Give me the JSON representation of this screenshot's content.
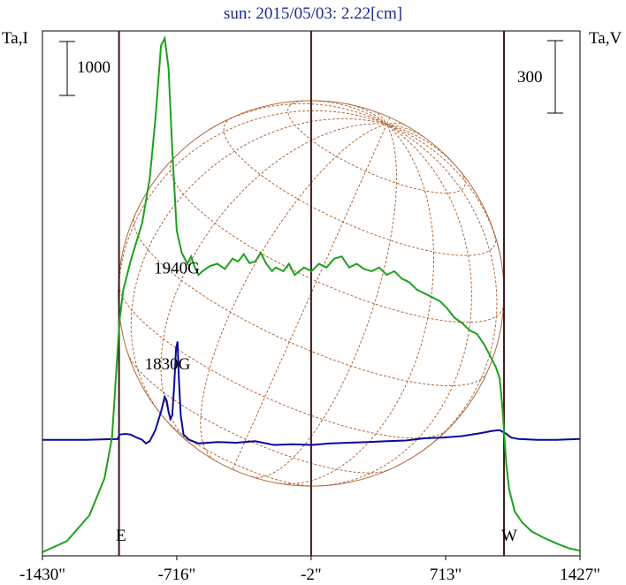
{
  "title": "sun: 2015/05/03: 2.22[cm]",
  "axes": {
    "left_label": "Ta,I",
    "right_label": "Ta,V",
    "left_scale_label": "1000",
    "right_scale_label": "300",
    "east_label": "E",
    "west_label": "W"
  },
  "annotations": [
    {
      "text": "1940G",
      "x": -716,
      "y": 3.82
    },
    {
      "text": "1830G",
      "x": -765,
      "y": 2.52
    }
  ],
  "colors": {
    "intensity": "#1fa01f",
    "polarization": "#0a0a9a",
    "disk": "#b06a3a",
    "axis": "#000000",
    "limb_lines": "#3a1a1a",
    "title": "#1a2a8a"
  },
  "chart_data": {
    "type": "line",
    "title": "sun: 2015/05/03: 2.22[cm]",
    "xlabel": "",
    "ylabel_left": "Ta,I",
    "ylabel_right": "Ta,V",
    "x_ticks": [
      {
        "value": -1430,
        "label": "-1430\""
      },
      {
        "value": -716,
        "label": "-716\""
      },
      {
        "value": -2,
        "label": "-2\""
      },
      {
        "value": 713,
        "label": "713\""
      },
      {
        "value": 1427,
        "label": "1427\""
      }
    ],
    "xlim": [
      -1430,
      1427
    ],
    "ylim": [
      0,
      7.1
    ],
    "limbs": [
      -1023,
      1023
    ],
    "center": -2,
    "scale_bars": {
      "left": 1000,
      "right": 300
    },
    "grid": false,
    "series": [
      {
        "name": "Ta,I",
        "color": "#1fa01f",
        "points": [
          [
            -1430,
            0.05
          ],
          [
            -1300,
            0.2
          ],
          [
            -1180,
            0.55
          ],
          [
            -1100,
            1.05
          ],
          [
            -1060,
            1.6
          ],
          [
            -1040,
            2.4
          ],
          [
            -1020,
            3.2
          ],
          [
            -1000,
            3.6
          ],
          [
            -960,
            4.0
          ],
          [
            -900,
            4.5
          ],
          [
            -860,
            5.1
          ],
          [
            -830,
            5.9
          ],
          [
            -800,
            6.9
          ],
          [
            -780,
            7.0
          ],
          [
            -760,
            6.6
          ],
          [
            -740,
            5.5
          ],
          [
            -716,
            4.4
          ],
          [
            -690,
            4.1
          ],
          [
            -660,
            3.95
          ],
          [
            -640,
            4.05
          ],
          [
            -620,
            3.9
          ],
          [
            -600,
            3.8
          ],
          [
            -580,
            3.85
          ],
          [
            -540,
            3.92
          ],
          [
            -500,
            3.95
          ],
          [
            -460,
            3.88
          ],
          [
            -420,
            4.02
          ],
          [
            -390,
            3.98
          ],
          [
            -360,
            4.08
          ],
          [
            -330,
            3.96
          ],
          [
            -300,
            3.98
          ],
          [
            -270,
            4.1
          ],
          [
            -240,
            3.95
          ],
          [
            -210,
            3.85
          ],
          [
            -190,
            3.9
          ],
          [
            -150,
            3.85
          ],
          [
            -120,
            3.95
          ],
          [
            -90,
            3.8
          ],
          [
            -40,
            3.9
          ],
          [
            0,
            3.85
          ],
          [
            40,
            3.95
          ],
          [
            80,
            3.9
          ],
          [
            120,
            4.02
          ],
          [
            160,
            4.05
          ],
          [
            200,
            3.9
          ],
          [
            240,
            3.95
          ],
          [
            280,
            3.88
          ],
          [
            320,
            3.85
          ],
          [
            360,
            3.9
          ],
          [
            400,
            3.8
          ],
          [
            440,
            3.85
          ],
          [
            480,
            3.75
          ],
          [
            520,
            3.7
          ],
          [
            560,
            3.6
          ],
          [
            600,
            3.55
          ],
          [
            640,
            3.5
          ],
          [
            680,
            3.45
          ],
          [
            720,
            3.35
          ],
          [
            760,
            3.22
          ],
          [
            800,
            3.15
          ],
          [
            840,
            3.05
          ],
          [
            880,
            3.0
          ],
          [
            920,
            2.85
          ],
          [
            950,
            2.7
          ],
          [
            980,
            2.55
          ],
          [
            1000,
            2.4
          ],
          [
            1015,
            2.0
          ],
          [
            1025,
            1.6
          ],
          [
            1035,
            1.25
          ],
          [
            1050,
            0.9
          ],
          [
            1080,
            0.6
          ],
          [
            1120,
            0.45
          ],
          [
            1170,
            0.33
          ],
          [
            1230,
            0.25
          ],
          [
            1300,
            0.17
          ],
          [
            1370,
            0.1
          ],
          [
            1427,
            0.07
          ]
        ]
      },
      {
        "name": "Ta,V",
        "color": "#0a0a9a",
        "points": [
          [
            -1430,
            1.57
          ],
          [
            -1200,
            1.57
          ],
          [
            -1030,
            1.58
          ],
          [
            -1020,
            1.64
          ],
          [
            -990,
            1.65
          ],
          [
            -960,
            1.64
          ],
          [
            -930,
            1.6
          ],
          [
            -900,
            1.57
          ],
          [
            -880,
            1.52
          ],
          [
            -860,
            1.55
          ],
          [
            -830,
            1.7
          ],
          [
            -800,
            1.95
          ],
          [
            -780,
            2.15
          ],
          [
            -770,
            2.1
          ],
          [
            -760,
            1.95
          ],
          [
            -750,
            1.85
          ],
          [
            -740,
            1.9
          ],
          [
            -730,
            2.3
          ],
          [
            -720,
            2.8
          ],
          [
            -712,
            2.9
          ],
          [
            -705,
            2.4
          ],
          [
            -695,
            1.9
          ],
          [
            -680,
            1.64
          ],
          [
            -650,
            1.57
          ],
          [
            -600,
            1.52
          ],
          [
            -500,
            1.54
          ],
          [
            -400,
            1.53
          ],
          [
            -300,
            1.55
          ],
          [
            -200,
            1.5
          ],
          [
            -100,
            1.51
          ],
          [
            0,
            1.5
          ],
          [
            100,
            1.52
          ],
          [
            200,
            1.53
          ],
          [
            300,
            1.54
          ],
          [
            400,
            1.55
          ],
          [
            500,
            1.56
          ],
          [
            600,
            1.59
          ],
          [
            700,
            1.6
          ],
          [
            800,
            1.62
          ],
          [
            900,
            1.66
          ],
          [
            960,
            1.69
          ],
          [
            1000,
            1.7
          ],
          [
            1030,
            1.66
          ],
          [
            1060,
            1.6
          ],
          [
            1100,
            1.58
          ],
          [
            1200,
            1.57
          ],
          [
            1300,
            1.57
          ],
          [
            1427,
            1.58
          ]
        ]
      }
    ]
  }
}
